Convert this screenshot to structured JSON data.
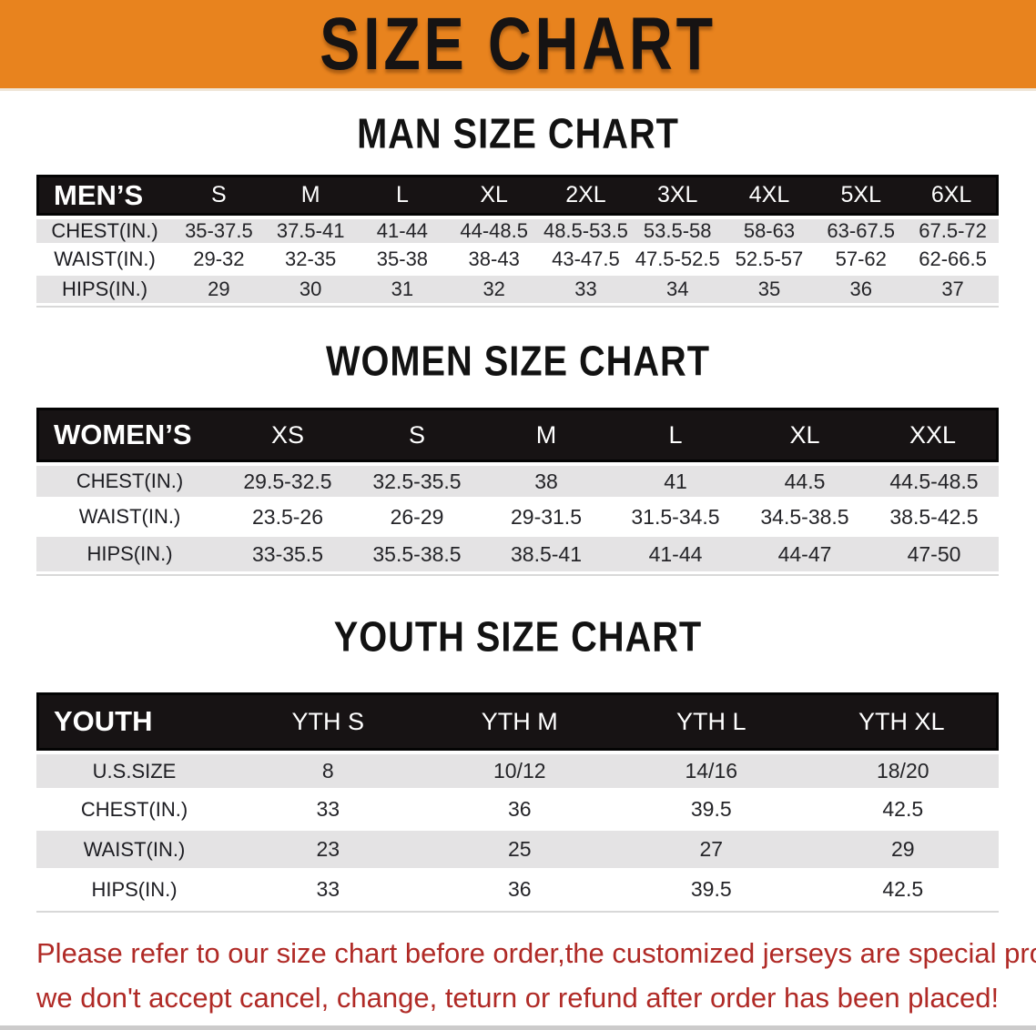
{
  "banner": {
    "title": "SIZE CHART",
    "bg_color": "#e8831e",
    "text_color": "#161313"
  },
  "colors": {
    "table_header_bg": "#171314",
    "stripe_row_bg": "#e4e3e4",
    "footnote_red": "#b02a26"
  },
  "tables": {
    "men": {
      "heading": "MAN SIZE CHART",
      "label": "MEN’S",
      "columns": [
        "S",
        "M",
        "L",
        "XL",
        "2XL",
        "3XL",
        "4XL",
        "5XL",
        "6XL"
      ],
      "rows": [
        {
          "label": "CHEST(IN.)",
          "values": [
            "35-37.5",
            "37.5-41",
            "41-44",
            "44-48.5",
            "48.5-53.5",
            "53.5-58",
            "58-63",
            "63-67.5",
            "67.5-72"
          ]
        },
        {
          "label": "WAIST(IN.)",
          "values": [
            "29-32",
            "32-35",
            "35-38",
            "38-43",
            "43-47.5",
            "47.5-52.5",
            "52.5-57",
            "57-62",
            "62-66.5"
          ]
        },
        {
          "label": "HIPS(IN.)",
          "values": [
            "29",
            "30",
            "31",
            "32",
            "33",
            "34",
            "35",
            "36",
            "37"
          ]
        }
      ]
    },
    "women": {
      "heading": "WOMEN SIZE CHART",
      "label": "WOMEN’S",
      "columns": [
        "XS",
        "S",
        "M",
        "L",
        "XL",
        "XXL"
      ],
      "rows": [
        {
          "label": "CHEST(IN.)",
          "values": [
            "29.5-32.5",
            "32.5-35.5",
            "38",
            "41",
            "44.5",
            "44.5-48.5"
          ]
        },
        {
          "label": "WAIST(IN.)",
          "values": [
            "23.5-26",
            "26-29",
            "29-31.5",
            "31.5-34.5",
            "34.5-38.5",
            "38.5-42.5"
          ]
        },
        {
          "label": "HIPS(IN.)",
          "values": [
            "33-35.5",
            "35.5-38.5",
            "38.5-41",
            "41-44",
            "44-47",
            "47-50"
          ]
        }
      ]
    },
    "youth": {
      "heading": "YOUTH SIZE CHART",
      "label": "YOUTH",
      "columns": [
        "YTH S",
        "YTH M",
        "YTH L",
        "YTH XL"
      ],
      "rows": [
        {
          "label": "U.S.SIZE",
          "values": [
            "8",
            "10/12",
            "14/16",
            "18/20"
          ]
        },
        {
          "label": "CHEST(IN.)",
          "values": [
            "33",
            "36",
            "39.5",
            "42.5"
          ]
        },
        {
          "label": "WAIST(IN.)",
          "values": [
            "23",
            "25",
            "27",
            "29"
          ]
        },
        {
          "label": "HIPS(IN.)",
          "values": [
            "33",
            "36",
            "39.5",
            "42.5"
          ]
        }
      ]
    }
  },
  "footnote": {
    "line1": "Please refer to our size chart before order,the customized jerseys are special products,",
    "line2": "we don't accept cancel, change, teturn or refund after order has been placed!"
  }
}
